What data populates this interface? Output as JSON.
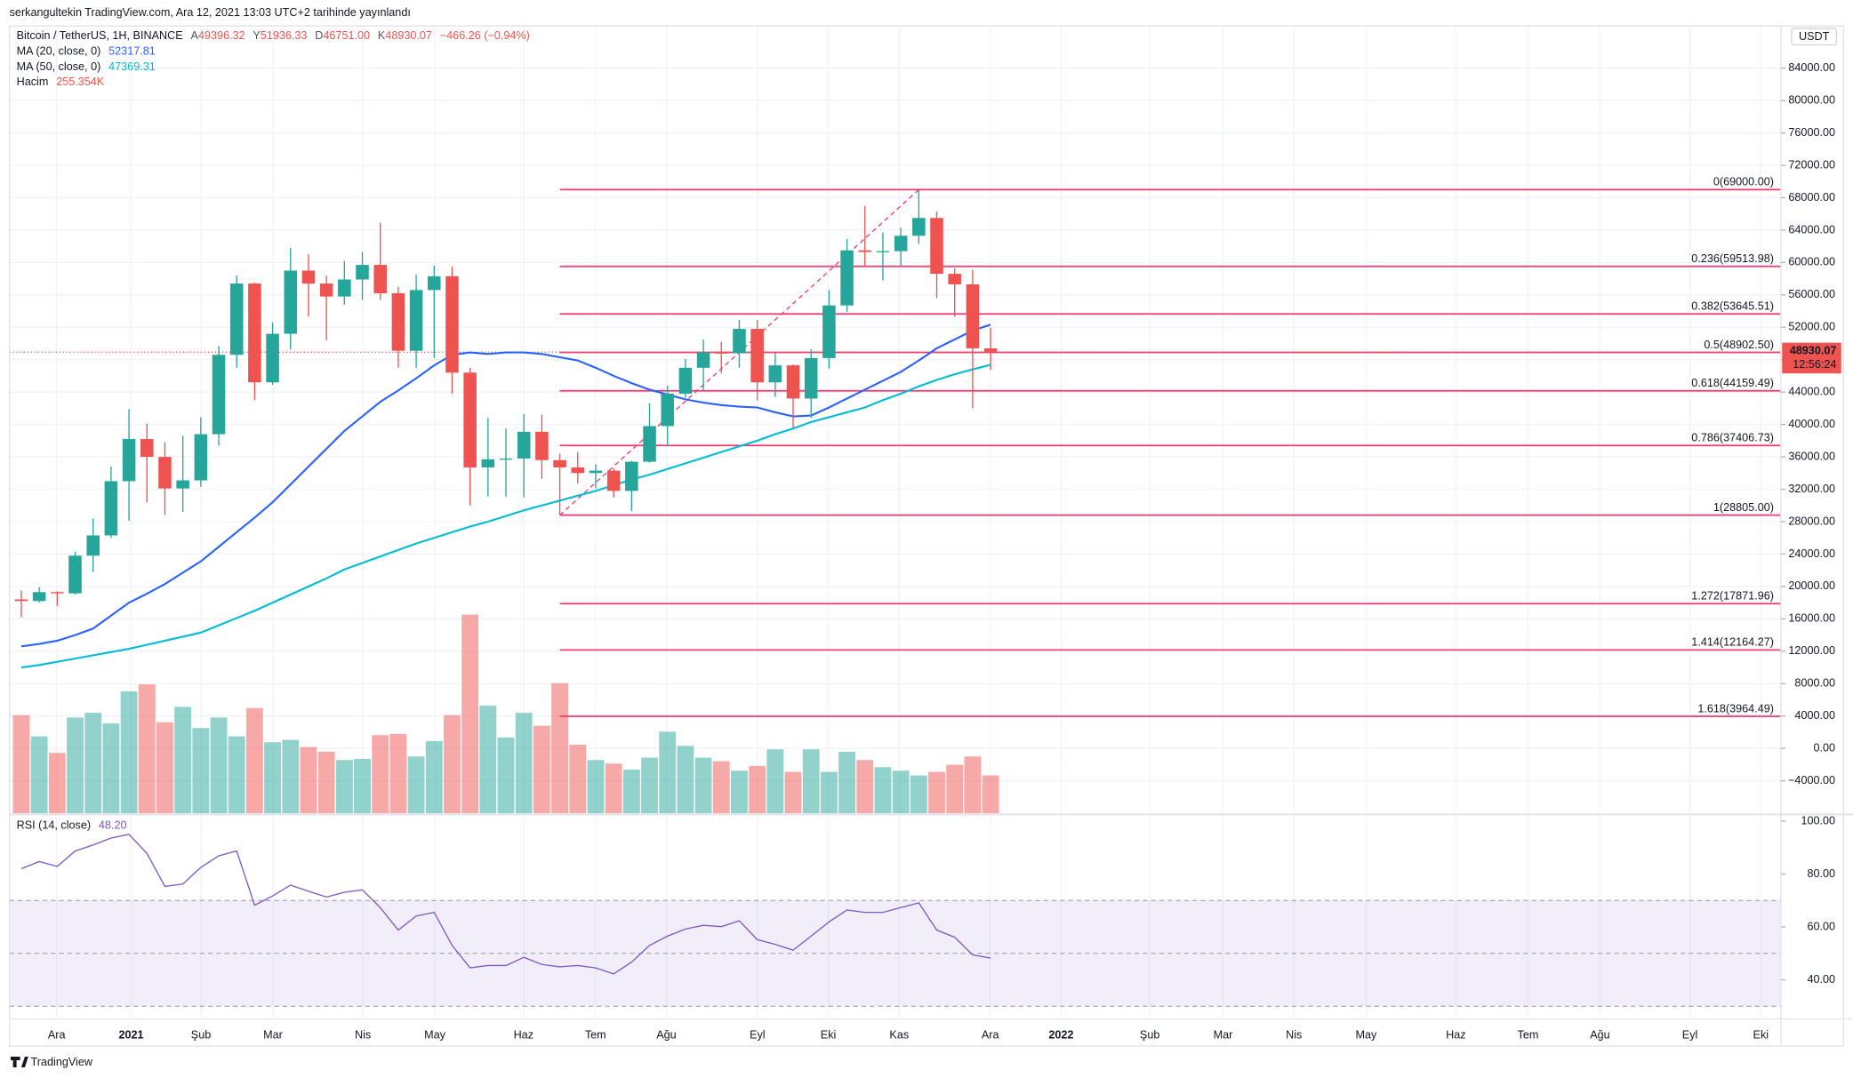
{
  "header": {
    "caption": "serkangultekin TradingView.com, Ara 12, 2021 13:03 UTC+2 tarihinde yayınlandı"
  },
  "footer": {
    "brand": "TradingView"
  },
  "chart_data": {
    "type": "candlestick",
    "title": "Bitcoin / TetherUS, 1H, BINANCE",
    "currency": "USDT",
    "ohlc_legend": [
      {
        "key": "A",
        "label": "49396.32"
      },
      {
        "key": "Y",
        "label": "51936.33"
      },
      {
        "key": "D",
        "label": "46751.00"
      },
      {
        "key": "K",
        "label": "48930.07"
      }
    ],
    "change_label": "−466.26 (−0.94%)",
    "price_tag": {
      "label": "48930.07",
      "countdown": "12:56:24"
    },
    "up_color": "#26a69a",
    "down_color": "#ef5350",
    "grid": true,
    "xlim": [
      -0.66,
      98.03
    ],
    "xticks": [
      {
        "value": 1.97,
        "label": "Ara"
      },
      {
        "value": 6.12,
        "label": "2021"
      },
      {
        "value": 10.01,
        "label": "Şub"
      },
      {
        "value": 14.02,
        "label": "Mar"
      },
      {
        "value": 19.03,
        "label": "Nis"
      },
      {
        "value": 23.04,
        "label": "May"
      },
      {
        "value": 27.98,
        "label": "Haz"
      },
      {
        "value": 31.99,
        "label": "Tem"
      },
      {
        "value": 35.94,
        "label": "Ağu"
      },
      {
        "value": 41.01,
        "label": "Eyl"
      },
      {
        "value": 44.96,
        "label": "Eki"
      },
      {
        "value": 48.91,
        "label": "Kas"
      },
      {
        "value": 53.98,
        "label": "Ara"
      },
      {
        "value": 57.93,
        "label": "2022"
      },
      {
        "value": 62.87,
        "label": "Şub"
      },
      {
        "value": 66.95,
        "label": "Mar"
      },
      {
        "value": 70.9,
        "label": "Nis"
      },
      {
        "value": 74.92,
        "label": "May"
      },
      {
        "value": 79.92,
        "label": "Haz"
      },
      {
        "value": 83.94,
        "label": "Tem"
      },
      {
        "value": 87.95,
        "label": "Ağu"
      },
      {
        "value": 92.96,
        "label": "Eyl"
      },
      {
        "value": 96.91,
        "label": "Eki"
      }
    ],
    "ylim": [
      -8000,
      89200
    ],
    "yticks": [
      {
        "value": -4000,
        "label": "−4000.00"
      },
      {
        "value": 0,
        "label": "0.00"
      },
      {
        "value": 4000,
        "label": "4000.00"
      },
      {
        "value": 8000,
        "label": "8000.00"
      },
      {
        "value": 12000,
        "label": "12000.00"
      },
      {
        "value": 16000,
        "label": "16000.00"
      },
      {
        "value": 20000,
        "label": "20000.00"
      },
      {
        "value": 24000,
        "label": "24000.00"
      },
      {
        "value": 28000,
        "label": "28000.00"
      },
      {
        "value": 32000,
        "label": "32000.00"
      },
      {
        "value": 36000,
        "label": "36000.00"
      },
      {
        "value": 40000,
        "label": "40000.00"
      },
      {
        "value": 44000,
        "label": "44000.00"
      },
      {
        "value": 48000,
        "label": "48000.00"
      },
      {
        "value": 52000,
        "label": "52000.00"
      },
      {
        "value": 56000,
        "label": "56000.00"
      },
      {
        "value": 60000,
        "label": "60000.00"
      },
      {
        "value": 64000,
        "label": "64000.00"
      },
      {
        "value": 68000,
        "label": "68000.00"
      },
      {
        "value": 72000,
        "label": "72000.00"
      },
      {
        "value": 76000,
        "label": "76000.00"
      },
      {
        "value": 80000,
        "label": "80000.00"
      },
      {
        "value": 84000,
        "label": "84000.00"
      }
    ],
    "candles": {
      "open": [
        18400,
        18200,
        19300,
        19150,
        23800,
        26300,
        33000,
        38200,
        36000,
        32100,
        33100,
        38800,
        48600,
        57400,
        45200,
        51200,
        59000,
        57400,
        55800,
        57900,
        59700,
        56200,
        49100,
        56600,
        58300,
        46400,
        34700,
        35700,
        35800,
        39100,
        35600,
        34700,
        34000,
        34300,
        31800,
        35400,
        39800,
        43800,
        47000,
        48900,
        48800,
        51800,
        45200,
        47300,
        43200,
        48200,
        54700,
        61500,
        61300,
        61400,
        63300,
        65500,
        58600,
        57300,
        49396.32
      ],
      "high": [
        19500,
        19900,
        19400,
        24300,
        28400,
        34800,
        41900,
        40100,
        37800,
        38600,
        40900,
        49700,
        58400,
        57500,
        52600,
        61800,
        61000,
        58400,
        60200,
        61300,
        64900,
        57000,
        58500,
        59600,
        59500,
        47000,
        40800,
        39500,
        41300,
        41200,
        36400,
        36600,
        35100,
        34600,
        35500,
        42600,
        44800,
        48100,
        50500,
        50200,
        52900,
        52900,
        48800,
        47400,
        49300,
        56600,
        62900,
        67000,
        63700,
        64300,
        69000,
        66300,
        59300,
        59100,
        51936.33
      ],
      "low": [
        16200,
        18000,
        17600,
        19000,
        21800,
        26000,
        28100,
        30400,
        28800,
        29200,
        32300,
        37400,
        47000,
        43000,
        44900,
        49300,
        53300,
        50400,
        54800,
        55400,
        55400,
        47000,
        47000,
        48200,
        43800,
        30000,
        31100,
        31100,
        31000,
        33300,
        28805,
        32700,
        32100,
        31000,
        29300,
        35300,
        37300,
        43300,
        44200,
        46300,
        47000,
        43000,
        43400,
        39600,
        40800,
        46900,
        53900,
        59500,
        57800,
        59500,
        62300,
        55600,
        53300,
        42000,
        46751
      ],
      "close": [
        18200,
        19300,
        19150,
        23800,
        26300,
        33000,
        38200,
        36000,
        32100,
        33100,
        38800,
        48600,
        57400,
        45200,
        51200,
        59000,
        57400,
        55800,
        57900,
        59700,
        56200,
        49100,
        56600,
        58300,
        46400,
        34700,
        35700,
        35800,
        39100,
        35600,
        34700,
        34000,
        34300,
        31800,
        35400,
        39800,
        43800,
        47000,
        48900,
        48800,
        51800,
        45200,
        47300,
        43200,
        48200,
        54700,
        61500,
        61300,
        61400,
        63300,
        65500,
        58600,
        57300,
        49400,
        48930.07
      ]
    },
    "series": [
      {
        "name": "MA (20, close, 0)",
        "color": "#2962ff",
        "value_label": "52317.81",
        "values": [
          12600,
          12900,
          13300,
          14000,
          14800,
          16400,
          18000,
          19100,
          20300,
          21700,
          23100,
          24900,
          26700,
          28500,
          30400,
          32600,
          34800,
          37000,
          39200,
          41000,
          42800,
          44200,
          45700,
          47300,
          48600,
          48900,
          48700,
          48900,
          48900,
          48700,
          48300,
          47900,
          47000,
          46000,
          45100,
          44300,
          43700,
          43100,
          42700,
          42400,
          42200,
          42100,
          41500,
          41000,
          41100,
          42100,
          43200,
          44300,
          45400,
          46500,
          47900,
          49400,
          50500,
          51600,
          52317.81
        ]
      },
      {
        "name": "MA (50, close, 0)",
        "color": "#00bcd4",
        "value_label": "47369.31",
        "values": [
          10000,
          10300,
          10700,
          11100,
          11500,
          11900,
          12300,
          12800,
          13300,
          13800,
          14300,
          15200,
          16100,
          17000,
          18000,
          19000,
          20000,
          21000,
          22100,
          22900,
          23700,
          24500,
          25300,
          26000,
          26700,
          27400,
          28000,
          28700,
          29400,
          30000,
          30600,
          31200,
          31800,
          32500,
          33200,
          33800,
          34500,
          35200,
          35900,
          36600,
          37300,
          38000,
          38800,
          39500,
          40300,
          40900,
          41500,
          42100,
          43000,
          43800,
          44700,
          45500,
          46200,
          46800,
          47369.31
        ]
      }
    ],
    "volume": {
      "name": "Hacim",
      "value_label": "255.354K",
      "lim": [
        0,
        5314
      ],
      "up_color": "rgba(38,166,154,0.5)",
      "down_color": "rgba(239,83,80,0.5)",
      "values": [
        662,
        519,
        407,
        646,
        678,
        606,
        822,
        870,
        614,
        718,
        575,
        646,
        519,
        710,
        479,
        495,
        447,
        415,
        359,
        367,
        527,
        535,
        383,
        487,
        662,
        1341,
        726,
        511,
        678,
        590,
        878,
        463,
        359,
        335,
        295,
        375,
        551,
        455,
        375,
        351,
        287,
        319,
        431,
        279,
        431,
        279,
        415,
        359,
        311,
        287,
        255,
        279,
        327,
        383,
        255.354
      ]
    },
    "fib": {
      "color": "#f23a6e",
      "x_start": 30,
      "levels": [
        {
          "value": 69000,
          "label": "0(69000.00)"
        },
        {
          "value": 59513.98,
          "label": "0.236(59513.98)"
        },
        {
          "value": 53645.51,
          "label": "0.382(53645.51)"
        },
        {
          "value": 48902.5,
          "label": "0.5(48902.50)"
        },
        {
          "value": 44159.49,
          "label": "0.618(44159.49)"
        },
        {
          "value": 37406.73,
          "label": "0.786(37406.73)"
        },
        {
          "value": 28805,
          "label": "1(28805.00)"
        },
        {
          "value": 17871.96,
          "label": "1.272(17871.96)"
        },
        {
          "value": 12164.27,
          "label": "1.414(12164.27)"
        },
        {
          "value": 3964.49,
          "label": "1.618(3964.49)"
        }
      ]
    },
    "trendline": {
      "x": [
        30,
        50
      ],
      "y": [
        28805,
        69000
      ]
    },
    "rsi": {
      "name": "RSI (14, close)",
      "value_label": "48.20",
      "color": "#7e57c2",
      "ylim": [
        26.1,
        102.1
      ],
      "yticks": [
        {
          "value": 40,
          "label": "40.00"
        },
        {
          "value": 60,
          "label": "60.00"
        },
        {
          "value": 80,
          "label": "80.00"
        },
        {
          "value": 100,
          "label": "100.00"
        }
      ],
      "band_lines": [
        30,
        50,
        70
      ],
      "values": [
        82.0,
        84.7,
        82.9,
        88.7,
        91.0,
        93.6,
        95.0,
        87.8,
        75.3,
        76.2,
        82.5,
        86.9,
        88.7,
        68.2,
        71.7,
        75.8,
        73.5,
        71.3,
        73.1,
        74.0,
        67.3,
        58.8,
        64.1,
        65.5,
        53.0,
        44.5,
        45.4,
        45.4,
        48.5,
        45.8,
        44.9,
        45.4,
        44.5,
        42.2,
        46.7,
        53.0,
        56.5,
        59.2,
        60.6,
        60.1,
        62.3,
        55.2,
        53.4,
        51.2,
        56.5,
        61.9,
        66.4,
        65.5,
        65.5,
        67.3,
        69.1,
        58.8,
        56.1,
        49.4,
        48.2
      ]
    }
  }
}
